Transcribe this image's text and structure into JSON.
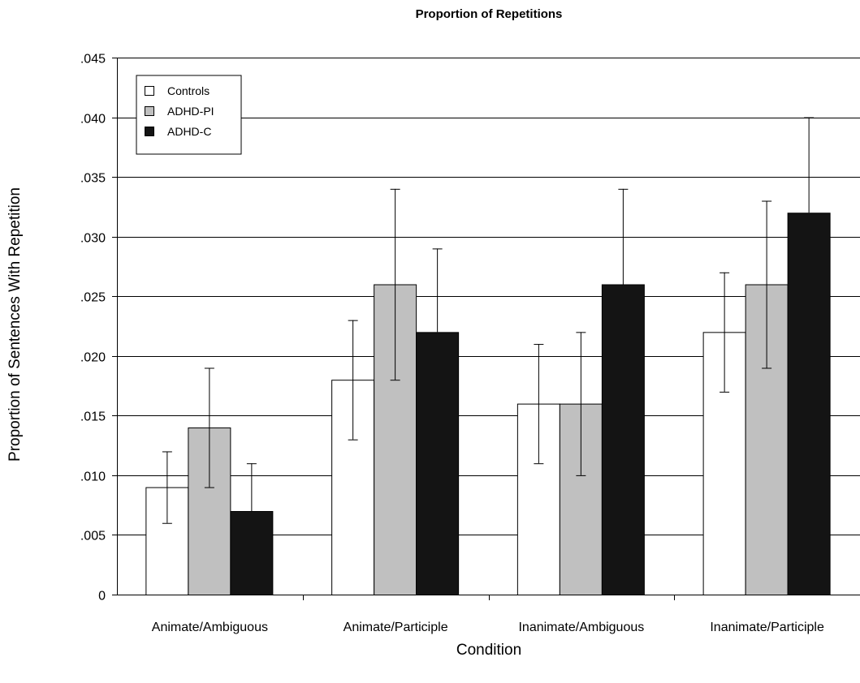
{
  "chart_data": {
    "type": "bar",
    "title": "Proportion of Repetitions",
    "xlabel": "Condition",
    "ylabel": "Proportion of Sentences With Repetition",
    "categories": [
      "Animate/Ambiguous",
      "Animate/Participle",
      "Inanimate/Ambiguous",
      "Inanimate/Participle"
    ],
    "ylim": [
      0,
      0.045
    ],
    "yticks": [
      0,
      0.005,
      0.01,
      0.015,
      0.02,
      0.025,
      0.03,
      0.035,
      0.04,
      0.045
    ],
    "ytick_labels": [
      "0",
      ".005",
      ".010",
      ".015",
      ".020",
      ".025",
      ".030",
      ".035",
      ".040",
      ".045"
    ],
    "grid": true,
    "legend_position": "top-left",
    "series": [
      {
        "name": "Controls",
        "color": "#ffffff",
        "values": [
          0.009,
          0.018,
          0.016,
          0.022
        ],
        "error_upper": [
          0.012,
          0.023,
          0.021,
          0.027
        ],
        "error_lower": [
          0.006,
          0.013,
          0.011,
          0.017
        ]
      },
      {
        "name": "ADHD-PI",
        "color": "#c0c0c0",
        "values": [
          0.014,
          0.026,
          0.016,
          0.026
        ],
        "error_upper": [
          0.019,
          0.034,
          0.022,
          0.033
        ],
        "error_lower": [
          0.009,
          0.018,
          0.01,
          0.019
        ]
      },
      {
        "name": "ADHD-C",
        "color": "#141414",
        "values": [
          0.007,
          0.022,
          0.026,
          0.032
        ],
        "error_upper": [
          0.011,
          0.029,
          0.034,
          0.04
        ],
        "error_lower": [
          0.007,
          0.022,
          0.026,
          0.032
        ]
      }
    ]
  }
}
